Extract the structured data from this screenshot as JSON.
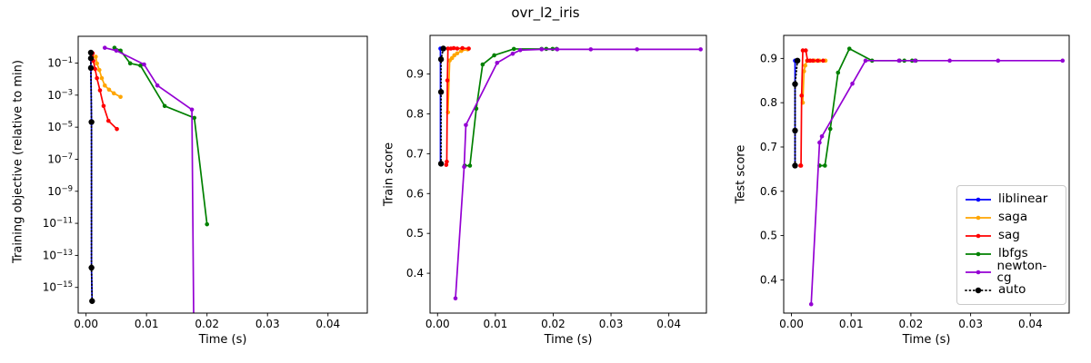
{
  "figure": {
    "title": "ovr_l2_iris",
    "background": "#ffffff"
  },
  "legend": {
    "entries": [
      "liblinear",
      "saga",
      "sag",
      "lbfgs",
      "newton-cg",
      "auto"
    ],
    "location": "lower-right-of-test-score-plot"
  },
  "colors": {
    "liblinear": "#0000ff",
    "saga": "#ffa500",
    "sag": "#ff0000",
    "lbfgs": "#008000",
    "newton-cg": "#9400d3",
    "auto": "#000000",
    "axes": "#000000",
    "legend_border": "#c9c9c9"
  },
  "chart_data": [
    {
      "type": "line",
      "title": "",
      "xlabel": "Time (s)",
      "ylabel": "Training objective (relative to min)",
      "yscale": "log",
      "grid": false,
      "xlim": [
        -0.0013,
        0.0465
      ],
      "ylim": [
        2.5e-17,
        4.7
      ],
      "xticks": [
        0,
        0.01,
        0.02,
        0.03,
        0.04
      ],
      "xtick_labels": [
        "0.00",
        "0.01",
        "0.02",
        "0.03",
        "0.04"
      ],
      "ytick_exponents": [
        -1,
        -3,
        -5,
        -7,
        -9,
        -11,
        -13,
        -15
      ],
      "series": [
        {
          "name": "liblinear",
          "color": "#0000ff",
          "linestyle": "solid",
          "marker_radius": 2.3,
          "points": [
            [
              0.0008,
              0.45
            ],
            [
              0.0008,
              0.2
            ],
            [
              0.0008,
              0.05
            ],
            [
              0.0009,
              2.1e-05
            ],
            [
              0.0009,
              1.7e-14
            ],
            [
              0.001,
              1.4e-16
            ]
          ]
        },
        {
          "name": "saga",
          "color": "#ffa500",
          "linestyle": "solid",
          "marker_radius": 2.3,
          "points": [
            [
              0.0016,
              0.25
            ],
            [
              0.0018,
              0.095
            ],
            [
              0.0022,
              0.037
            ],
            [
              0.0026,
              0.0115
            ],
            [
              0.0031,
              0.004
            ],
            [
              0.0038,
              0.0022
            ],
            [
              0.0046,
              0.0013
            ],
            [
              0.0057,
              0.00078
            ]
          ]
        },
        {
          "name": "sag",
          "color": "#ff0000",
          "linestyle": "solid",
          "marker_radius": 2.3,
          "points": [
            [
              0.0011,
              0.41
            ],
            [
              0.0012,
              0.14
            ],
            [
              0.0015,
              0.043
            ],
            [
              0.0018,
              0.0115
            ],
            [
              0.0023,
              0.002
            ],
            [
              0.0029,
              0.00021
            ],
            [
              0.0037,
              2.5e-05
            ],
            [
              0.0051,
              7.7e-06
            ]
          ]
        },
        {
          "name": "lbfgs",
          "color": "#008000",
          "linestyle": "solid",
          "marker_radius": 2.3,
          "points": [
            [
              0.0047,
              0.9
            ],
            [
              0.0057,
              0.6
            ],
            [
              0.0073,
              0.096
            ],
            [
              0.009,
              0.07
            ],
            [
              0.013,
              0.00021
            ],
            [
              0.0179,
              3.8e-05
            ],
            [
              0.02,
              8.7e-12
            ]
          ]
        },
        {
          "name": "newton-cg",
          "color": "#9400d3",
          "linestyle": "solid",
          "marker_radius": 2.3,
          "drops_to_zero_at_x": 0.0178,
          "points": [
            [
              0.0031,
              0.9
            ],
            [
              0.005,
              0.6
            ],
            [
              0.0096,
              0.082
            ],
            [
              0.0118,
              0.004
            ],
            [
              0.0175,
              0.000125
            ]
          ]
        },
        {
          "name": "auto",
          "color": "#000000",
          "linestyle": "dotted",
          "marker_radius": 3.2,
          "points": [
            [
              0.0008,
              0.45
            ],
            [
              0.0008,
              0.2
            ],
            [
              0.0008,
              0.05
            ],
            [
              0.0009,
              2.1e-05
            ],
            [
              0.0009,
              1.7e-14
            ],
            [
              0.001,
              1.4e-16
            ]
          ]
        }
      ]
    },
    {
      "type": "line",
      "title": "",
      "xlabel": "Time (s)",
      "ylabel": "Train score",
      "yscale": "linear",
      "grid": false,
      "xlim": [
        -0.0013,
        0.0465
      ],
      "ylim": [
        0.3,
        0.997
      ],
      "xticks": [
        0,
        0.01,
        0.02,
        0.03,
        0.04
      ],
      "xtick_labels": [
        "0.00",
        "0.01",
        "0.02",
        "0.03",
        "0.04"
      ],
      "yticks": [
        0.4,
        0.5,
        0.6,
        0.7,
        0.8,
        0.9
      ],
      "series": [
        {
          "name": "liblinear",
          "color": "#0000ff",
          "linestyle": "solid",
          "marker_radius": 2.3,
          "points": [
            [
              0.0005,
              0.675
            ],
            [
              0.0005,
              0.855
            ],
            [
              0.0005,
              0.937
            ],
            [
              0.0005,
              0.964
            ]
          ]
        },
        {
          "name": "saga",
          "color": "#ffa500",
          "linestyle": "solid",
          "marker_radius": 2.3,
          "points": [
            [
              0.0018,
              0.804
            ],
            [
              0.0021,
              0.934
            ],
            [
              0.0025,
              0.94
            ],
            [
              0.0029,
              0.947
            ],
            [
              0.0034,
              0.952
            ],
            [
              0.0041,
              0.958
            ],
            [
              0.0052,
              0.962
            ]
          ]
        },
        {
          "name": "sag",
          "color": "#ff0000",
          "linestyle": "solid",
          "marker_radius": 2.3,
          "points": [
            [
              0.0015,
              0.672
            ],
            [
              0.0016,
              0.68
            ],
            [
              0.0017,
              0.884
            ],
            [
              0.0018,
              0.964
            ],
            [
              0.0023,
              0.964
            ],
            [
              0.0028,
              0.965
            ],
            [
              0.0034,
              0.964
            ],
            [
              0.0043,
              0.965
            ],
            [
              0.0054,
              0.964
            ]
          ]
        },
        {
          "name": "lbfgs",
          "color": "#008000",
          "linestyle": "solid",
          "marker_radius": 2.3,
          "points": [
            [
              0.0047,
              0.67
            ],
            [
              0.0056,
              0.67
            ],
            [
              0.0067,
              0.813
            ],
            [
              0.0078,
              0.924
            ],
            [
              0.0098,
              0.947
            ],
            [
              0.0132,
              0.963
            ],
            [
              0.018,
              0.963
            ],
            [
              0.0188,
              0.963
            ],
            [
              0.0199,
              0.963
            ],
            [
              0.0206,
              0.963
            ]
          ]
        },
        {
          "name": "newton-cg",
          "color": "#9400d3",
          "linestyle": "solid",
          "marker_radius": 2.3,
          "points": [
            [
              0.0031,
              0.337
            ],
            [
              0.0046,
              0.667
            ],
            [
              0.0049,
              0.772
            ],
            [
              0.0103,
              0.928
            ],
            [
              0.013,
              0.951
            ],
            [
              0.0143,
              0.96
            ],
            [
              0.018,
              0.962
            ],
            [
              0.0207,
              0.962
            ],
            [
              0.0265,
              0.962
            ],
            [
              0.0345,
              0.962
            ],
            [
              0.0455,
              0.962
            ]
          ]
        },
        {
          "name": "auto",
          "color": "#000000",
          "linestyle": "dotted",
          "marker_radius": 3.2,
          "points": [
            [
              0.0006,
              0.675
            ],
            [
              0.0006,
              0.855
            ],
            [
              0.0006,
              0.937
            ],
            [
              0.001,
              0.964
            ]
          ]
        }
      ]
    },
    {
      "type": "line",
      "title": "",
      "xlabel": "Time (s)",
      "ylabel": "Test score",
      "yscale": "linear",
      "grid": false,
      "xlim": [
        -0.0013,
        0.0465
      ],
      "ylim": [
        0.325,
        0.952
      ],
      "xticks": [
        0,
        0.01,
        0.02,
        0.03,
        0.04
      ],
      "xtick_labels": [
        "0.00",
        "0.01",
        "0.02",
        "0.03",
        "0.04"
      ],
      "yticks": [
        0.4,
        0.5,
        0.6,
        0.7,
        0.8,
        0.9
      ],
      "series": [
        {
          "name": "liblinear",
          "color": "#0000ff",
          "linestyle": "solid",
          "marker_radius": 2.3,
          "points": [
            [
              0.0006,
              0.658
            ],
            [
              0.0006,
              0.737
            ],
            [
              0.0006,
              0.842
            ],
            [
              0.0006,
              0.895
            ]
          ]
        },
        {
          "name": "saga",
          "color": "#ffa500",
          "linestyle": "solid",
          "marker_radius": 2.3,
          "points": [
            [
              0.0019,
              0.8
            ],
            [
              0.0021,
              0.871
            ],
            [
              0.0023,
              0.884
            ],
            [
              0.0026,
              0.895
            ],
            [
              0.0032,
              0.895
            ],
            [
              0.0039,
              0.895
            ],
            [
              0.0047,
              0.895
            ],
            [
              0.0057,
              0.895
            ]
          ]
        },
        {
          "name": "sag",
          "color": "#ff0000",
          "linestyle": "solid",
          "marker_radius": 2.3,
          "points": [
            [
              0.0015,
              0.658
            ],
            [
              0.0016,
              0.658
            ],
            [
              0.0017,
              0.816
            ],
            [
              0.0019,
              0.918
            ],
            [
              0.0024,
              0.918
            ],
            [
              0.0027,
              0.895
            ],
            [
              0.0031,
              0.895
            ],
            [
              0.0036,
              0.895
            ],
            [
              0.0044,
              0.895
            ],
            [
              0.0053,
              0.895
            ]
          ]
        },
        {
          "name": "lbfgs",
          "color": "#008000",
          "linestyle": "solid",
          "marker_radius": 2.3,
          "points": [
            [
              0.0047,
              0.658
            ],
            [
              0.0056,
              0.658
            ],
            [
              0.0065,
              0.741
            ],
            [
              0.0078,
              0.868
            ],
            [
              0.0097,
              0.922
            ],
            [
              0.0135,
              0.895
            ],
            [
              0.0181,
              0.895
            ],
            [
              0.0189,
              0.895
            ],
            [
              0.0202,
              0.895
            ],
            [
              0.0208,
              0.895
            ]
          ]
        },
        {
          "name": "newton-cg",
          "color": "#9400d3",
          "linestyle": "solid",
          "marker_radius": 2.3,
          "points": [
            [
              0.0033,
              0.345
            ],
            [
              0.0047,
              0.71
            ],
            [
              0.0051,
              0.724
            ],
            [
              0.0102,
              0.843
            ],
            [
              0.0124,
              0.895
            ],
            [
              0.018,
              0.895
            ],
            [
              0.0207,
              0.895
            ],
            [
              0.0265,
              0.895
            ],
            [
              0.0346,
              0.895
            ],
            [
              0.0454,
              0.895
            ]
          ]
        },
        {
          "name": "auto",
          "color": "#000000",
          "linestyle": "dotted",
          "marker_radius": 3.2,
          "points": [
            [
              0.0006,
              0.658
            ],
            [
              0.0006,
              0.737
            ],
            [
              0.0006,
              0.842
            ],
            [
              0.001,
              0.895
            ]
          ]
        }
      ]
    }
  ]
}
